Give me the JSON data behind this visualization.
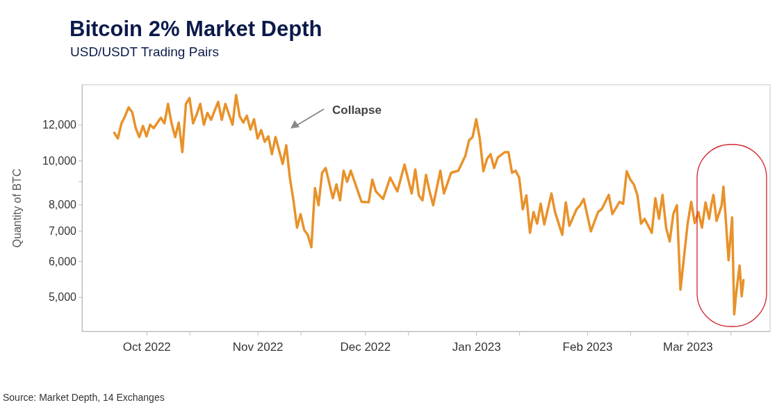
{
  "chart_data": {
    "type": "line",
    "title": "Bitcoin 2% Market Depth",
    "subtitle": "USD/USDT Trading Pairs",
    "ylabel": "Quantity of BTC",
    "log": true,
    "xlim": [
      "2022-09-13",
      "2023-03-24"
    ],
    "ylim": [
      4200,
      14700
    ],
    "xticks": [
      {
        "value": "2022-10-01",
        "label": "Oct 2022"
      },
      {
        "value": "2022-10-13",
        "label": null
      },
      {
        "value": "2022-11-01",
        "label": "Nov 2022"
      },
      {
        "value": "2022-11-13",
        "label": null
      },
      {
        "value": "2022-12-01",
        "label": "Dec 2022"
      },
      {
        "value": "2022-12-13",
        "label": null
      },
      {
        "value": "2023-01-01",
        "label": "Jan 2023"
      },
      {
        "value": "2023-01-13",
        "label": null
      },
      {
        "value": "2023-02-01",
        "label": "Feb 2023"
      },
      {
        "value": "2023-02-13",
        "label": null
      },
      {
        "value": "2023-03-01",
        "label": "Mar 2023"
      },
      {
        "value": "2023-03-13",
        "label": null
      }
    ],
    "yticks": [
      {
        "value": 5000,
        "label": "5,000"
      },
      {
        "value": 6000,
        "label": "6,000"
      },
      {
        "value": 7000,
        "label": "7,000"
      },
      {
        "value": 8000,
        "label": "8,000"
      },
      {
        "value": 9000,
        "label": null
      },
      {
        "value": 10000,
        "label": "10,000"
      },
      {
        "value": 12000,
        "label": "12,000"
      }
    ],
    "x": [
      "2022-09-22",
      "2022-09-23",
      "2022-09-24",
      "2022-09-25",
      "2022-09-26",
      "2022-09-27",
      "2022-09-28",
      "2022-09-29",
      "2022-09-30",
      "2022-10-01",
      "2022-10-02",
      "2022-10-03",
      "2022-10-05",
      "2022-10-06",
      "2022-10-07",
      "2022-10-08",
      "2022-10-09",
      "2022-10-10",
      "2022-10-11",
      "2022-10-12",
      "2022-10-13",
      "2022-10-14",
      "2022-10-15",
      "2022-10-16",
      "2022-10-17",
      "2022-10-18",
      "2022-10-19",
      "2022-10-20",
      "2022-10-21",
      "2022-10-22",
      "2022-10-23",
      "2022-10-25",
      "2022-10-26",
      "2022-10-27",
      "2022-10-28",
      "2022-10-29",
      "2022-10-30",
      "2022-10-31",
      "2022-11-01",
      "2022-11-02",
      "2022-11-03",
      "2022-11-04",
      "2022-11-05",
      "2022-11-06",
      "2022-11-08",
      "2022-11-09",
      "2022-11-10",
      "2022-11-11",
      "2022-11-12",
      "2022-11-13",
      "2022-11-14",
      "2022-11-15",
      "2022-11-16",
      "2022-11-17",
      "2022-11-18",
      "2022-11-19",
      "2022-11-20",
      "2022-11-22",
      "2022-11-23",
      "2022-11-24",
      "2022-11-25",
      "2022-11-26",
      "2022-11-27",
      "2022-11-29",
      "2022-11-30",
      "2022-12-02",
      "2022-12-03",
      "2022-12-04",
      "2022-12-06",
      "2022-12-08",
      "2022-12-10",
      "2022-12-12",
      "2022-12-14",
      "2022-12-15",
      "2022-12-16",
      "2022-12-17",
      "2022-12-18",
      "2022-12-19",
      "2022-12-20",
      "2022-12-22",
      "2022-12-23",
      "2022-12-25",
      "2022-12-27",
      "2022-12-29",
      "2022-12-30",
      "2022-12-31",
      "2023-01-01",
      "2023-01-02",
      "2023-01-03",
      "2023-01-04",
      "2023-01-05",
      "2023-01-06",
      "2023-01-07",
      "2023-01-09",
      "2023-01-10",
      "2023-01-11",
      "2023-01-12",
      "2023-01-13",
      "2023-01-14",
      "2023-01-15",
      "2023-01-16",
      "2023-01-17",
      "2023-01-18",
      "2023-01-19",
      "2023-01-20",
      "2023-01-22",
      "2023-01-23",
      "2023-01-25",
      "2023-01-26",
      "2023-01-27",
      "2023-01-29",
      "2023-01-30",
      "2023-01-31",
      "2023-02-02",
      "2023-02-04",
      "2023-02-05",
      "2023-02-07",
      "2023-02-08",
      "2023-02-10",
      "2023-02-11",
      "2023-02-12",
      "2023-02-13",
      "2023-02-14",
      "2023-02-15",
      "2023-02-16",
      "2023-02-17",
      "2023-02-19",
      "2023-02-20",
      "2023-02-21",
      "2023-02-22",
      "2023-02-23",
      "2023-02-24",
      "2023-02-25",
      "2023-02-26",
      "2023-02-27",
      "2023-03-01",
      "2023-03-02",
      "2023-03-03",
      "2023-03-04",
      "2023-03-05",
      "2023-03-06",
      "2023-03-07",
      "2023-03-07T14:00",
      "2023-03-08T05:00",
      "2023-03-09T02:00",
      "2023-03-10T12:00",
      "2023-03-11T00:00",
      "2023-03-11T14:00",
      "2023-03-12T10:00",
      "2023-03-13T10:00",
      "2023-03-14T00:00",
      "2023-03-14T12:00",
      "2023-03-15T12:00",
      "2023-03-16T02:00",
      "2023-03-16T14:00"
    ],
    "series": [
      {
        "color": "#e8922a",
        "values": [
          11510,
          11190,
          12080,
          12520,
          13110,
          12790,
          11790,
          11270,
          11920,
          11310,
          12000,
          11790,
          12430,
          12080,
          13340,
          12080,
          11270,
          12130,
          10440,
          13340,
          13740,
          12080,
          12650,
          13340,
          12000,
          12740,
          12300,
          12880,
          13480,
          12300,
          13340,
          12000,
          13950,
          12520,
          12130,
          12560,
          11710,
          12340,
          11190,
          11670,
          11000,
          11310,
          10330,
          11270,
          9830,
          10810,
          9170,
          8170,
          7110,
          7620,
          7030,
          6860,
          6440,
          8700,
          7970,
          9400,
          9630,
          8260,
          8860,
          8170,
          9500,
          8980,
          9500,
          8550,
          8110,
          8090,
          9080,
          8550,
          8230,
          9170,
          8550,
          9800,
          8460,
          9560,
          8380,
          8170,
          9300,
          8550,
          7970,
          9500,
          8460,
          9400,
          9500,
          10260,
          11080,
          11270,
          12340,
          11190,
          9470,
          10080,
          10330,
          9630,
          10150,
          10440,
          10440,
          9400,
          9500,
          9170,
          7810,
          8380,
          6930,
          7700,
          7260,
          8030,
          7230,
          8460,
          7700,
          6860,
          8090,
          7180,
          7810,
          7970,
          8230,
          6980,
          7700,
          7810,
          8400,
          7620,
          8110,
          8030,
          9470,
          9080,
          8860,
          8380,
          7260,
          7440,
          6930,
          8260,
          7440,
          8400,
          7110,
          6630,
          7620,
          7970,
          5190,
          7260,
          8110,
          7280,
          7700,
          7110,
          8090,
          7440,
          7970,
          8400,
          7360,
          7970,
          8760,
          7540,
          6030,
          7490,
          4580,
          5050,
          5870,
          5020,
          5450
        ]
      }
    ],
    "annotations": [
      "Collapse",
      "Source: Market Depth, 14 Exchanges"
    ]
  }
}
